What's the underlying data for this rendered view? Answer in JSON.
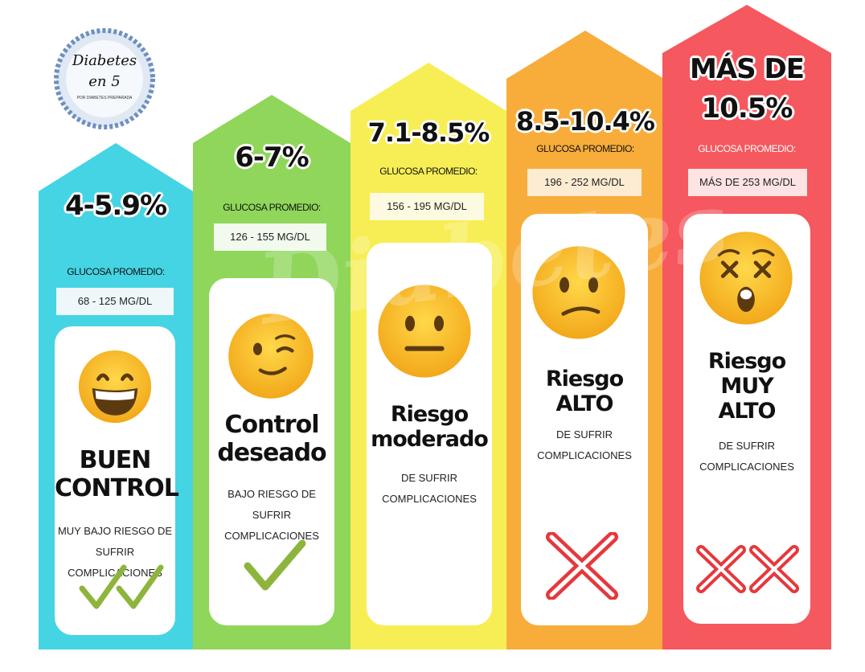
{
  "logo": {
    "line1": "Diabetes",
    "line2": "en 5",
    "tagline": "POR DIABETES PREPARADA",
    "icon": "diabetes-en-5-logo"
  },
  "watermark": "Diabetes",
  "columns": [
    {
      "color": "#45d4e3",
      "percent": "4-5.9%",
      "glucose_label": "GLUCOSA PROMEDIO:",
      "range": "68 - 125 MG/DL",
      "emoji": "grinning-face-icon",
      "title_lines": [
        "BUEN",
        "CONTROL"
      ],
      "desc_lines": [
        "MUY BAJO RIESGO DE",
        "SUFRIR COMPLICACIONES"
      ],
      "mark": "double-check-icon"
    },
    {
      "color": "#8fd65a",
      "percent": "6-7%",
      "glucose_label": "GLUCOSA PROMEDIO:",
      "range": "126 - 155 MG/DL",
      "emoji": "winking-face-icon",
      "title_lines": [
        "Control",
        "deseado"
      ],
      "desc_lines": [
        "BAJO RIESGO DE SUFRIR",
        "COMPLICACIONES"
      ],
      "mark": "check-icon"
    },
    {
      "color": "#f7ee55",
      "percent": "7.1-8.5%",
      "glucose_label": "GLUCOSA PROMEDIO:",
      "range": "156 - 195 MG/DL",
      "emoji": "neutral-face-icon",
      "title_lines": [
        "Riesgo",
        "moderado"
      ],
      "desc_lines": [
        "DE SUFRIR",
        "COMPLICACIONES"
      ],
      "mark": ""
    },
    {
      "color": "#f8ad3a",
      "percent": "8.5-10.4%",
      "glucose_label": "GLUCOSA PROMEDIO:",
      "range": "196 - 252 MG/DL",
      "emoji": "confused-face-icon",
      "title_lines": [
        "Riesgo",
        "ALTO"
      ],
      "desc_lines": [
        "DE SUFRIR",
        "COMPLICACIONES"
      ],
      "mark": "cross-icon"
    },
    {
      "color": "#f5585e",
      "percent_lines": [
        "MÁS DE",
        "10.5%"
      ],
      "glucose_label": "GLUCOSA PROMEDIO:",
      "range": "MÁS DE 253 MG/DL",
      "emoji": "dizzy-face-icon",
      "title_lines": [
        "Riesgo",
        "MUY",
        "ALTO"
      ],
      "desc_lines": [
        "DE SUFRIR",
        "COMPLICACIONES"
      ],
      "mark": "double-cross-icon"
    }
  ]
}
